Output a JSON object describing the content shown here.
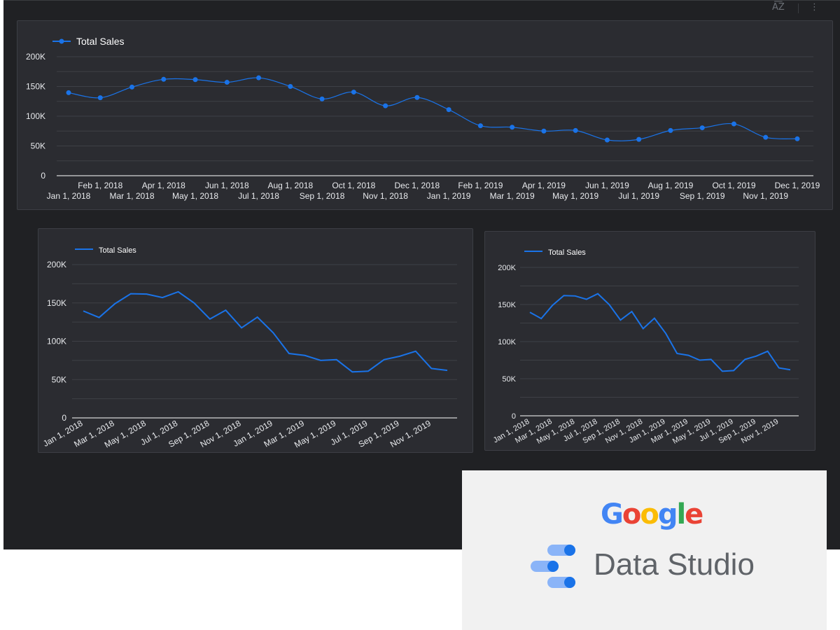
{
  "toolbar": {
    "sort_icon_glyph": "A͞Z",
    "more_icon_glyph": "⋮"
  },
  "colors": {
    "series": "#1a73e8",
    "grid": "#3e4046",
    "axis": "#e8eaed",
    "card_bg": "#2b2c31",
    "canvas_bg": "#202124"
  },
  "branding": {
    "google_letters": [
      {
        "char": "G",
        "color": "#4285F4"
      },
      {
        "char": "o",
        "color": "#EA4335"
      },
      {
        "char": "o",
        "color": "#FBBC05"
      },
      {
        "char": "g",
        "color": "#4285F4"
      },
      {
        "char": "l",
        "color": "#34A853"
      },
      {
        "char": "e",
        "color": "#EA4335"
      }
    ],
    "product_name": "Data Studio"
  },
  "chart_data": [
    {
      "type": "line",
      "title": "",
      "legend": "Total Sales",
      "legend_position": "top-left",
      "markers": true,
      "smooth": true,
      "grid": true,
      "xlabel": "",
      "ylabel": "",
      "ylim": [
        0,
        200000
      ],
      "yticks": [
        "0",
        "50K",
        "100K",
        "150K",
        "200K"
      ],
      "x": [
        "Jan 1, 2018",
        "Feb 1, 2018",
        "Mar 1, 2018",
        "Apr 1, 2018",
        "May 1, 2018",
        "Jun 1, 2018",
        "Jul 1, 2018",
        "Aug 1, 2018",
        "Sep 1, 2018",
        "Oct 1, 2018",
        "Nov 1, 2018",
        "Dec 1, 2018",
        "Jan 1, 2019",
        "Feb 1, 2019",
        "Mar 1, 2019",
        "Apr 1, 2019",
        "May 1, 2019",
        "Jun 1, 2019",
        "Jul 1, 2019",
        "Aug 1, 2019",
        "Sep 1, 2019",
        "Oct 1, 2019",
        "Nov 1, 2019",
        "Dec 1, 2019"
      ],
      "series": [
        {
          "name": "Total Sales",
          "values": [
            139500,
            131000,
            149000,
            162000,
            161500,
            157000,
            164500,
            150000,
            129000,
            140500,
            117500,
            131500,
            111000,
            84000,
            81500,
            75000,
            76000,
            60000,
            61000,
            76000,
            80500,
            87000,
            64500,
            62000
          ]
        }
      ]
    },
    {
      "type": "line",
      "title": "",
      "legend": "Total Sales",
      "legend_position": "top-left",
      "markers": false,
      "smooth": false,
      "grid": true,
      "ylim": [
        0,
        200000
      ],
      "yticks": [
        "0",
        "50K",
        "100K",
        "150K",
        "200K"
      ],
      "xticks": [
        "Jan 1, 2018",
        "Mar 1, 2018",
        "May 1, 2018",
        "Jul 1, 2018",
        "Sep 1, 2018",
        "Nov 1, 2018",
        "Jan 1, 2019",
        "Mar 1, 2019",
        "May 1, 2019",
        "Jul 1, 2019",
        "Sep 1, 2019",
        "Nov 1, 2019"
      ],
      "series": [
        {
          "name": "Total Sales",
          "values": [
            139500,
            131000,
            149000,
            162000,
            161500,
            157000,
            164500,
            150000,
            129000,
            140500,
            117500,
            131500,
            111000,
            84000,
            81500,
            75000,
            76000,
            60000,
            61000,
            76000,
            80500,
            87000,
            64500,
            62000
          ]
        }
      ]
    },
    {
      "type": "line",
      "title": "",
      "legend": "Total Sales",
      "legend_position": "top-left",
      "markers": false,
      "smooth": false,
      "grid": true,
      "ylim": [
        0,
        200000
      ],
      "yticks": [
        "0",
        "50K",
        "100K",
        "150K",
        "200K"
      ],
      "xticks": [
        "Jan 1, 2018",
        "Mar 1, 2018",
        "May 1, 2018",
        "Jul 1, 2018",
        "Sep 1, 2018",
        "Nov 1, 2018",
        "Jan 1, 2019",
        "Mar 1, 2019",
        "May 1, 2019",
        "Jul 1, 2019",
        "Sep 1, 2019",
        "Nov 1, 2019"
      ],
      "series": [
        {
          "name": "Total Sales",
          "values": [
            139500,
            131000,
            149000,
            162000,
            161500,
            157000,
            164500,
            150000,
            129000,
            140500,
            117500,
            131500,
            111000,
            84000,
            81500,
            75000,
            76000,
            60000,
            61000,
            76000,
            80500,
            87000,
            64500,
            62000
          ]
        }
      ]
    }
  ]
}
